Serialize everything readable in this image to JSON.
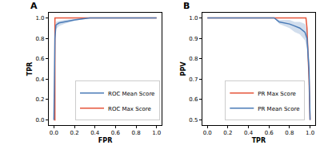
{
  "chart_data": [
    {
      "type": "line",
      "title": "A",
      "x_label": "FPR",
      "y_label": "TPR",
      "xlim": [
        -0.05,
        1.05
      ],
      "ylim": [
        -0.05,
        1.05
      ],
      "xticks": [
        {
          "value": 0,
          "label": "0.0"
        },
        0.2,
        0.4,
        0.6,
        0.8,
        {
          "value": 1,
          "label": "1.0"
        }
      ],
      "yticks": [
        {
          "value": 0,
          "label": "0.0"
        },
        0.2,
        0.4,
        0.6,
        0.8,
        {
          "value": 1,
          "label": "1.0"
        }
      ],
      "grid": false,
      "legend": "lower right",
      "series": [
        {
          "name": "ROC Max Score",
          "color": "#e6553a",
          "x": [
            0,
            0.01,
            0.01,
            1
          ],
          "values": [
            0,
            0,
            1,
            1
          ]
        },
        {
          "name": "ROC Mean Score",
          "color": "#4a7bb7",
          "x": [
            0,
            0.01,
            0.02,
            0.05,
            0.1,
            0.2,
            0.35,
            1
          ],
          "values": [
            0,
            0.8,
            0.93,
            0.95,
            0.96,
            0.98,
            1,
            1
          ],
          "lower": [
            0,
            0.75,
            0.89,
            0.92,
            0.94,
            0.97,
            1,
            1
          ],
          "upper": [
            0,
            0.85,
            0.96,
            0.97,
            0.98,
            0.99,
            1,
            1
          ]
        }
      ]
    },
    {
      "type": "line",
      "title": "B",
      "x_label": "TPR",
      "y_label": "PPV",
      "xlim": [
        -0.05,
        1.05
      ],
      "ylim": [
        0.475,
        1.025
      ],
      "xticks": [
        {
          "value": 0,
          "label": "0.0"
        },
        0.2,
        0.4,
        0.6,
        0.8,
        {
          "value": 1,
          "label": "1.0"
        }
      ],
      "yticks": [
        0.5,
        0.6,
        0.7,
        0.8,
        0.9,
        {
          "value": 1,
          "label": "1.0"
        }
      ],
      "grid": false,
      "legend": "lower right",
      "series": [
        {
          "name": "PR Max Score",
          "color": "#e6553a",
          "x": [
            0,
            0.96,
            0.97,
            0.99,
            1
          ],
          "values": [
            1,
            1,
            0.95,
            0.7,
            0.5
          ]
        },
        {
          "name": "PR Mean Score",
          "color": "#4a7bb7",
          "x": [
            0,
            0.65,
            0.7,
            0.8,
            0.85,
            0.9,
            0.95,
            0.97,
            0.99,
            1
          ],
          "values": [
            1,
            1,
            0.98,
            0.97,
            0.96,
            0.95,
            0.93,
            0.9,
            0.75,
            0.5
          ],
          "lower": [
            1,
            1,
            0.97,
            0.95,
            0.93,
            0.92,
            0.89,
            0.85,
            0.68,
            0.5
          ],
          "upper": [
            1,
            1,
            0.99,
            0.99,
            0.98,
            0.98,
            0.97,
            0.94,
            0.82,
            0.5
          ]
        }
      ]
    }
  ]
}
